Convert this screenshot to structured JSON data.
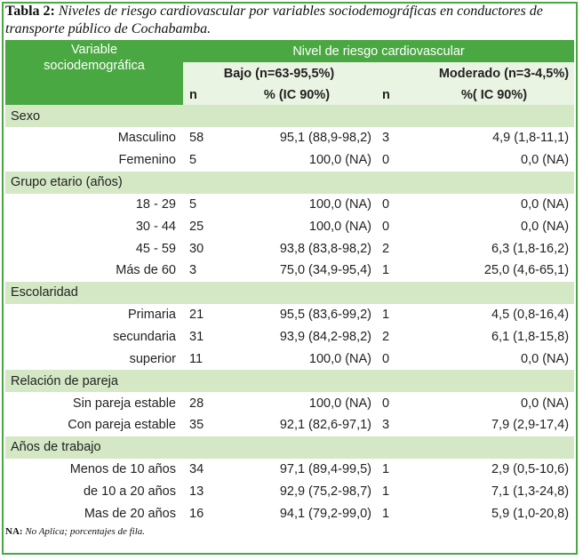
{
  "caption": {
    "label": "Tabla 2:",
    "text": "Niveles de riesgo cardiovascular por variables sociodemográficas en conductores de transporte público de Cochabamba."
  },
  "header": {
    "variable_line1": "Variable",
    "variable_line2": "sociodemográfica",
    "group": "Nivel de riesgo cardiovascular",
    "bajo": "Bajo (n=63-95,5%)",
    "moderado": "Moderado (n=3-4,5%)",
    "n1": "n",
    "pct1": "% (IC 90%)",
    "n2": "n",
    "pct2": "%( IC 90%)"
  },
  "sections": [
    {
      "title": "Sexo",
      "rows": [
        {
          "label": "Masculino",
          "n1": "58",
          "pct1": "95,1 (88,9-98,2)",
          "n2": "3",
          "pct2": "4,9 (1,8-11,1)"
        },
        {
          "label": "Femenino",
          "n1": "5",
          "pct1": "100,0 (NA)",
          "n2": "0",
          "pct2": "0,0 (NA)"
        }
      ]
    },
    {
      "title": "Grupo etario (años)",
      "rows": [
        {
          "label": "18 - 29",
          "n1": "5",
          "pct1": "100,0 (NA)",
          "n2": "0",
          "pct2": "0,0 (NA)"
        },
        {
          "label": "30 - 44",
          "n1": "25",
          "pct1": "100,0 (NA)",
          "n2": "0",
          "pct2": "0,0 (NA)"
        },
        {
          "label": "45 - 59",
          "n1": "30",
          "pct1": "93,8 (83,8-98,2)",
          "n2": "2",
          "pct2": "6,3 (1,8-16,2)"
        },
        {
          "label": "Más de 60",
          "n1": "3",
          "pct1": "75,0 (34,9-95,4)",
          "n2": "1",
          "pct2": "25,0 (4,6-65,1)"
        }
      ]
    },
    {
      "title": "Escolaridad",
      "rows": [
        {
          "label": "Primaria",
          "n1": "21",
          "pct1": "95,5 (83,6-99,2)",
          "n2": "1",
          "pct2": "4,5 (0,8-16,4)"
        },
        {
          "label": "secundaria",
          "n1": "31",
          "pct1": "93,9 (84,2-98,2)",
          "n2": "2",
          "pct2": "6,1 (1,8-15,8)"
        },
        {
          "label": "superior",
          "n1": "11",
          "pct1": "100,0 (NA)",
          "n2": "0",
          "pct2": "0,0 (NA)"
        }
      ]
    },
    {
      "title": "Relación de pareja",
      "rows": [
        {
          "label": "Sin pareja estable",
          "n1": "28",
          "pct1": "100,0 (NA)",
          "n2": "0",
          "pct2": "0,0 (NA)"
        },
        {
          "label": "Con pareja estable",
          "n1": "35",
          "pct1": "92,1 (82,6-97,1)",
          "n2": "3",
          "pct2": "7,9 (2,9-17,4)"
        }
      ]
    },
    {
      "title": "Años de trabajo",
      "rows": [
        {
          "label": "Menos de 10 años",
          "n1": "34",
          "pct1": "97,1 (89,4-99,5)",
          "n2": "1",
          "pct2": "2,9 (0,5-10,6)"
        },
        {
          "label": "de 10 a 20 años",
          "n1": "13",
          "pct1": "92,9 (75,2-98,7)",
          "n2": "1",
          "pct2": "7,1 (1,3-24,8)"
        },
        {
          "label": "Mas de 20 años",
          "n1": "16",
          "pct1": "94,1 (79,2-99,0)",
          "n2": "1",
          "pct2": "5,9 (1,0-20,8)"
        }
      ]
    }
  ],
  "footnote": {
    "label": "NA:",
    "text": "No Aplica; porcentajes de fila."
  },
  "colors": {
    "header_green": "#4aa842",
    "section_band": "#d4e8c5",
    "subheader_light": "#eaf4e2"
  }
}
